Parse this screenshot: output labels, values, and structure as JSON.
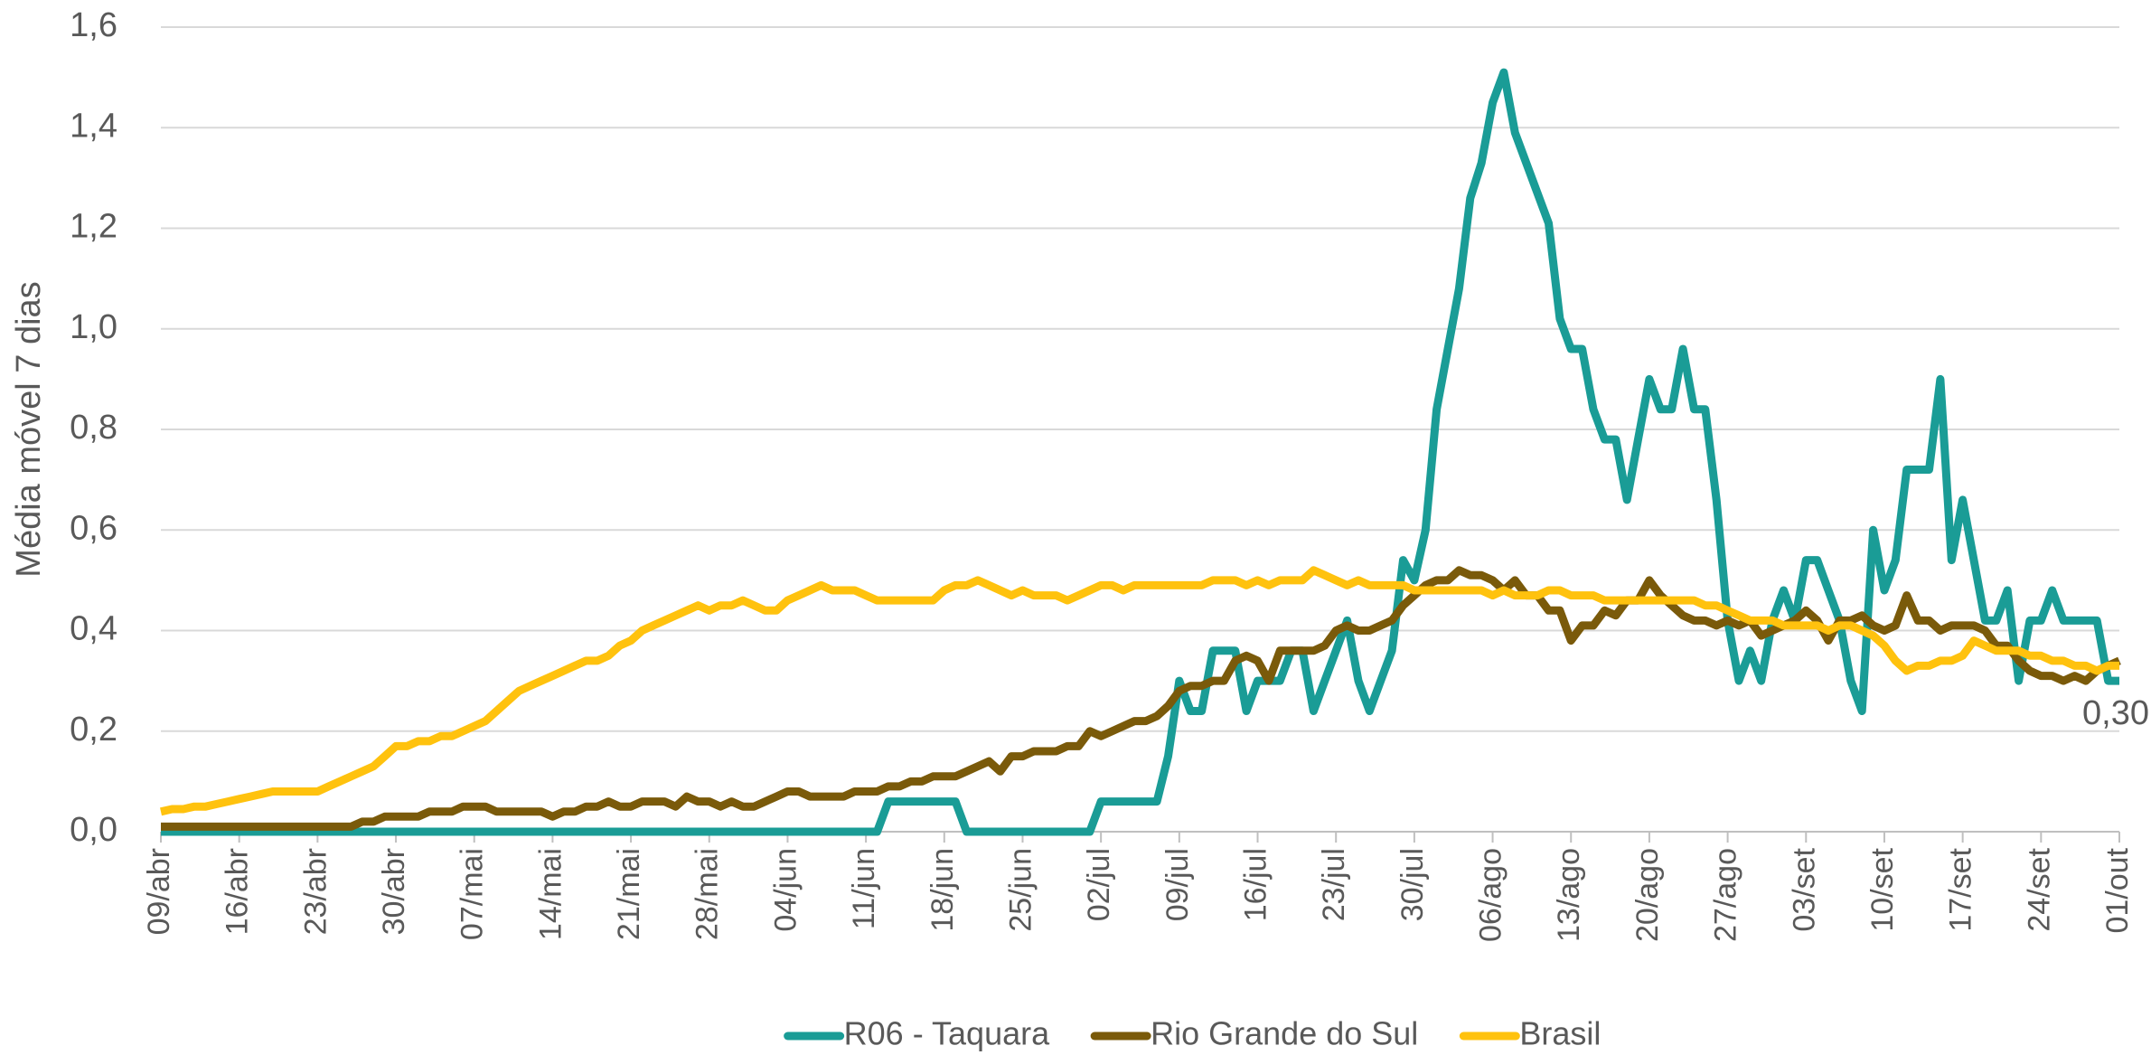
{
  "chart_data": {
    "type": "line",
    "y_label": "Média móvel 7 dias",
    "ylim": [
      0,
      1.6
    ],
    "yticks": [
      {
        "value": 0,
        "label": "0,0"
      },
      {
        "value": 0.2,
        "label": "0,2"
      },
      {
        "value": 0.4,
        "label": "0,4"
      },
      {
        "value": 0.6,
        "label": "0,6"
      },
      {
        "value": 0.8,
        "label": "0,8"
      },
      {
        "value": 1.0,
        "label": "1,0"
      },
      {
        "value": 1.2,
        "label": "1,2"
      },
      {
        "value": 1.4,
        "label": "1,4"
      },
      {
        "value": 1.6,
        "label": "1,6"
      }
    ],
    "grid": true,
    "legend": "bottom",
    "categories": [
      "09/abr",
      null,
      null,
      null,
      null,
      null,
      null,
      "16/abr",
      null,
      null,
      null,
      null,
      null,
      null,
      "23/abr",
      null,
      null,
      null,
      null,
      null,
      null,
      "30/abr",
      null,
      null,
      null,
      null,
      null,
      null,
      "07/mai",
      null,
      null,
      null,
      null,
      null,
      null,
      "14/mai",
      null,
      null,
      null,
      null,
      null,
      null,
      "21/mai",
      null,
      null,
      null,
      null,
      null,
      null,
      "28/mai",
      null,
      null,
      null,
      null,
      null,
      null,
      "04/jun",
      null,
      null,
      null,
      null,
      null,
      null,
      "11/jun",
      null,
      null,
      null,
      null,
      null,
      null,
      "18/jun",
      null,
      null,
      null,
      null,
      null,
      null,
      "25/jun",
      null,
      null,
      null,
      null,
      null,
      null,
      "02/jul",
      null,
      null,
      null,
      null,
      null,
      null,
      "09/jul",
      null,
      null,
      null,
      null,
      null,
      null,
      "16/jul",
      null,
      null,
      null,
      null,
      null,
      null,
      "23/jul",
      null,
      null,
      null,
      null,
      null,
      null,
      "30/jul",
      null,
      null,
      null,
      null,
      null,
      null,
      "06/ago",
      null,
      null,
      null,
      null,
      null,
      null,
      "13/ago",
      null,
      null,
      null,
      null,
      null,
      null,
      "20/ago",
      null,
      null,
      null,
      null,
      null,
      null,
      "27/ago",
      null,
      null,
      null,
      null,
      null,
      null,
      "03/set",
      null,
      null,
      null,
      null,
      null,
      null,
      "10/set",
      null,
      null,
      null,
      null,
      null,
      null,
      "17/set",
      null,
      null,
      null,
      null,
      null,
      null,
      "24/set",
      null,
      null,
      null,
      null,
      null,
      null,
      "01/out"
    ],
    "series": [
      {
        "name": "R06 - Taquara",
        "color": "#1a9c96",
        "values": [
          0,
          0,
          0,
          0,
          0,
          0,
          0,
          0,
          0,
          0,
          0,
          0,
          0,
          0,
          0,
          0,
          0,
          0,
          0,
          0,
          0,
          0,
          0,
          0,
          0,
          0,
          0,
          0,
          0,
          0,
          0,
          0,
          0,
          0,
          0,
          0,
          0,
          0,
          0,
          0,
          0,
          0,
          0,
          0,
          0,
          0,
          0,
          0,
          0,
          0,
          0,
          0,
          0,
          0,
          0,
          0,
          0,
          0,
          0,
          0,
          0,
          0,
          0,
          0,
          0,
          0.06,
          0.06,
          0.06,
          0.06,
          0.06,
          0.06,
          0.06,
          0,
          0,
          0,
          0,
          0,
          0,
          0,
          0,
          0,
          0,
          0,
          0,
          0.06,
          0.06,
          0.06,
          0.06,
          0.06,
          0.06,
          0.15,
          0.3,
          0.24,
          0.24,
          0.36,
          0.36,
          0.36,
          0.24,
          0.3,
          0.3,
          0.3,
          0.36,
          0.36,
          0.24,
          0.3,
          0.36,
          0.42,
          0.3,
          0.24,
          0.3,
          0.36,
          0.54,
          0.5,
          0.6,
          0.84,
          0.96,
          1.08,
          1.26,
          1.33,
          1.45,
          1.51,
          1.39,
          1.33,
          1.27,
          1.21,
          1.02,
          0.96,
          0.96,
          0.84,
          0.78,
          0.78,
          0.66,
          0.78,
          0.9,
          0.84,
          0.84,
          0.96,
          0.84,
          0.84,
          0.66,
          0.42,
          0.3,
          0.36,
          0.3,
          0.42,
          0.48,
          0.42,
          0.54,
          0.54,
          0.48,
          0.42,
          0.3,
          0.24,
          0.6,
          0.48,
          0.54,
          0.72,
          0.72,
          0.72,
          0.9,
          0.54,
          0.66,
          0.54,
          0.42,
          0.42,
          0.48,
          0.3,
          0.42,
          0.42,
          0.48,
          0.42,
          0.42,
          0.42,
          0.42,
          0.3,
          0.3
        ],
        "value_labels": [
          null,
          null,
          null,
          null,
          null,
          null,
          null,
          null,
          null,
          null,
          null,
          null,
          null,
          null,
          null,
          null,
          null,
          null,
          null,
          null,
          null,
          null,
          null,
          null,
          null,
          null,
          null,
          null,
          null,
          null,
          null,
          null,
          null,
          null,
          null,
          null,
          null,
          null,
          null,
          null,
          null,
          null,
          null,
          null,
          null,
          null,
          null,
          null,
          null,
          null,
          null,
          null,
          null,
          null,
          null,
          null,
          null,
          null,
          null,
          null,
          null,
          null,
          null,
          null,
          null,
          null,
          null,
          null,
          null,
          null,
          null,
          null,
          null,
          null,
          null,
          null,
          null,
          null,
          null,
          null,
          null,
          null,
          null,
          null,
          null,
          null,
          null,
          null,
          null,
          null,
          null,
          null,
          null,
          null,
          null,
          null,
          null,
          null,
          null,
          null,
          null,
          null,
          null,
          null,
          null,
          null,
          null,
          null,
          null,
          null,
          null,
          null,
          null,
          null,
          null,
          null,
          null,
          null,
          null,
          null,
          null,
          null,
          null,
          null,
          null,
          null,
          null,
          null,
          null,
          null,
          null,
          null,
          null,
          null,
          null,
          null,
          null,
          null,
          null,
          null,
          null,
          null,
          null,
          null,
          null,
          null,
          null,
          null,
          null,
          null,
          null,
          null,
          null,
          null,
          null,
          null,
          null,
          null,
          null,
          null,
          null,
          null,
          null,
          null,
          null,
          null,
          null,
          null,
          null,
          null,
          null,
          null,
          null,
          null,
          null,
          "0,30"
        ]
      },
      {
        "name": "Rio Grande do Sul",
        "color": "#7a5a0a",
        "values": [
          0.01,
          0.01,
          0.01,
          0.01,
          0.01,
          0.01,
          0.01,
          0.01,
          0.01,
          0.01,
          0.01,
          0.01,
          0.01,
          0.01,
          0.01,
          0.01,
          0.01,
          0.01,
          0.02,
          0.02,
          0.03,
          0.03,
          0.03,
          0.03,
          0.04,
          0.04,
          0.04,
          0.05,
          0.05,
          0.05,
          0.04,
          0.04,
          0.04,
          0.04,
          0.04,
          0.03,
          0.04,
          0.04,
          0.05,
          0.05,
          0.06,
          0.05,
          0.05,
          0.06,
          0.06,
          0.06,
          0.05,
          0.07,
          0.06,
          0.06,
          0.05,
          0.06,
          0.05,
          0.05,
          0.06,
          0.07,
          0.08,
          0.08,
          0.07,
          0.07,
          0.07,
          0.07,
          0.08,
          0.08,
          0.08,
          0.09,
          0.09,
          0.1,
          0.1,
          0.11,
          0.11,
          0.11,
          0.12,
          0.13,
          0.14,
          0.12,
          0.15,
          0.15,
          0.16,
          0.16,
          0.16,
          0.17,
          0.17,
          0.2,
          0.19,
          0.2,
          0.21,
          0.22,
          0.22,
          0.23,
          0.25,
          0.28,
          0.29,
          0.29,
          0.3,
          0.3,
          0.34,
          0.35,
          0.34,
          0.3,
          0.36,
          0.36,
          0.36,
          0.36,
          0.37,
          0.4,
          0.41,
          0.4,
          0.4,
          0.41,
          0.42,
          0.45,
          0.47,
          0.49,
          0.5,
          0.5,
          0.52,
          0.51,
          0.51,
          0.5,
          0.48,
          0.5,
          0.47,
          0.47,
          0.44,
          0.44,
          0.38,
          0.41,
          0.41,
          0.44,
          0.43,
          0.46,
          0.46,
          0.5,
          0.47,
          0.45,
          0.43,
          0.42,
          0.42,
          0.41,
          0.42,
          0.41,
          0.42,
          0.39,
          0.4,
          0.41,
          0.42,
          0.44,
          0.42,
          0.38,
          0.42,
          0.42,
          0.43,
          0.41,
          0.4,
          0.41,
          0.47,
          0.42,
          0.42,
          0.4,
          0.41,
          0.41,
          0.41,
          0.4,
          0.37,
          0.37,
          0.34,
          0.32,
          0.31,
          0.31,
          0.3,
          0.31,
          0.3,
          0.32,
          0.33,
          0.34
        ]
      },
      {
        "name": "Brasil",
        "color": "#ffc20e",
        "values": [
          0.04,
          0.045,
          0.045,
          0.05,
          0.05,
          0.055,
          0.06,
          0.065,
          0.07,
          0.075,
          0.08,
          0.08,
          0.08,
          0.08,
          0.08,
          0.09,
          0.1,
          0.11,
          0.12,
          0.13,
          0.15,
          0.17,
          0.17,
          0.18,
          0.18,
          0.19,
          0.19,
          0.2,
          0.21,
          0.22,
          0.24,
          0.26,
          0.28,
          0.29,
          0.3,
          0.31,
          0.32,
          0.33,
          0.34,
          0.34,
          0.35,
          0.37,
          0.38,
          0.4,
          0.41,
          0.42,
          0.43,
          0.44,
          0.45,
          0.44,
          0.45,
          0.45,
          0.46,
          0.45,
          0.44,
          0.44,
          0.46,
          0.47,
          0.48,
          0.49,
          0.48,
          0.48,
          0.48,
          0.47,
          0.46,
          0.46,
          0.46,
          0.46,
          0.46,
          0.46,
          0.48,
          0.49,
          0.49,
          0.5,
          0.49,
          0.48,
          0.47,
          0.48,
          0.47,
          0.47,
          0.47,
          0.46,
          0.47,
          0.48,
          0.49,
          0.49,
          0.48,
          0.49,
          0.49,
          0.49,
          0.49,
          0.49,
          0.49,
          0.49,
          0.5,
          0.5,
          0.5,
          0.49,
          0.5,
          0.49,
          0.5,
          0.5,
          0.5,
          0.52,
          0.51,
          0.5,
          0.49,
          0.5,
          0.49,
          0.49,
          0.49,
          0.49,
          0.48,
          0.48,
          0.48,
          0.48,
          0.48,
          0.48,
          0.48,
          0.47,
          0.48,
          0.47,
          0.47,
          0.47,
          0.48,
          0.48,
          0.47,
          0.47,
          0.47,
          0.46,
          0.46,
          0.46,
          0.46,
          0.46,
          0.46,
          0.46,
          0.46,
          0.46,
          0.45,
          0.45,
          0.44,
          0.43,
          0.42,
          0.42,
          0.42,
          0.41,
          0.41,
          0.41,
          0.41,
          0.4,
          0.41,
          0.41,
          0.4,
          0.39,
          0.37,
          0.34,
          0.32,
          0.33,
          0.33,
          0.34,
          0.34,
          0.35,
          0.38,
          0.37,
          0.36,
          0.36,
          0.36,
          0.35,
          0.35,
          0.34,
          0.34,
          0.33,
          0.33,
          0.32,
          0.33,
          0.33
        ]
      }
    ]
  }
}
